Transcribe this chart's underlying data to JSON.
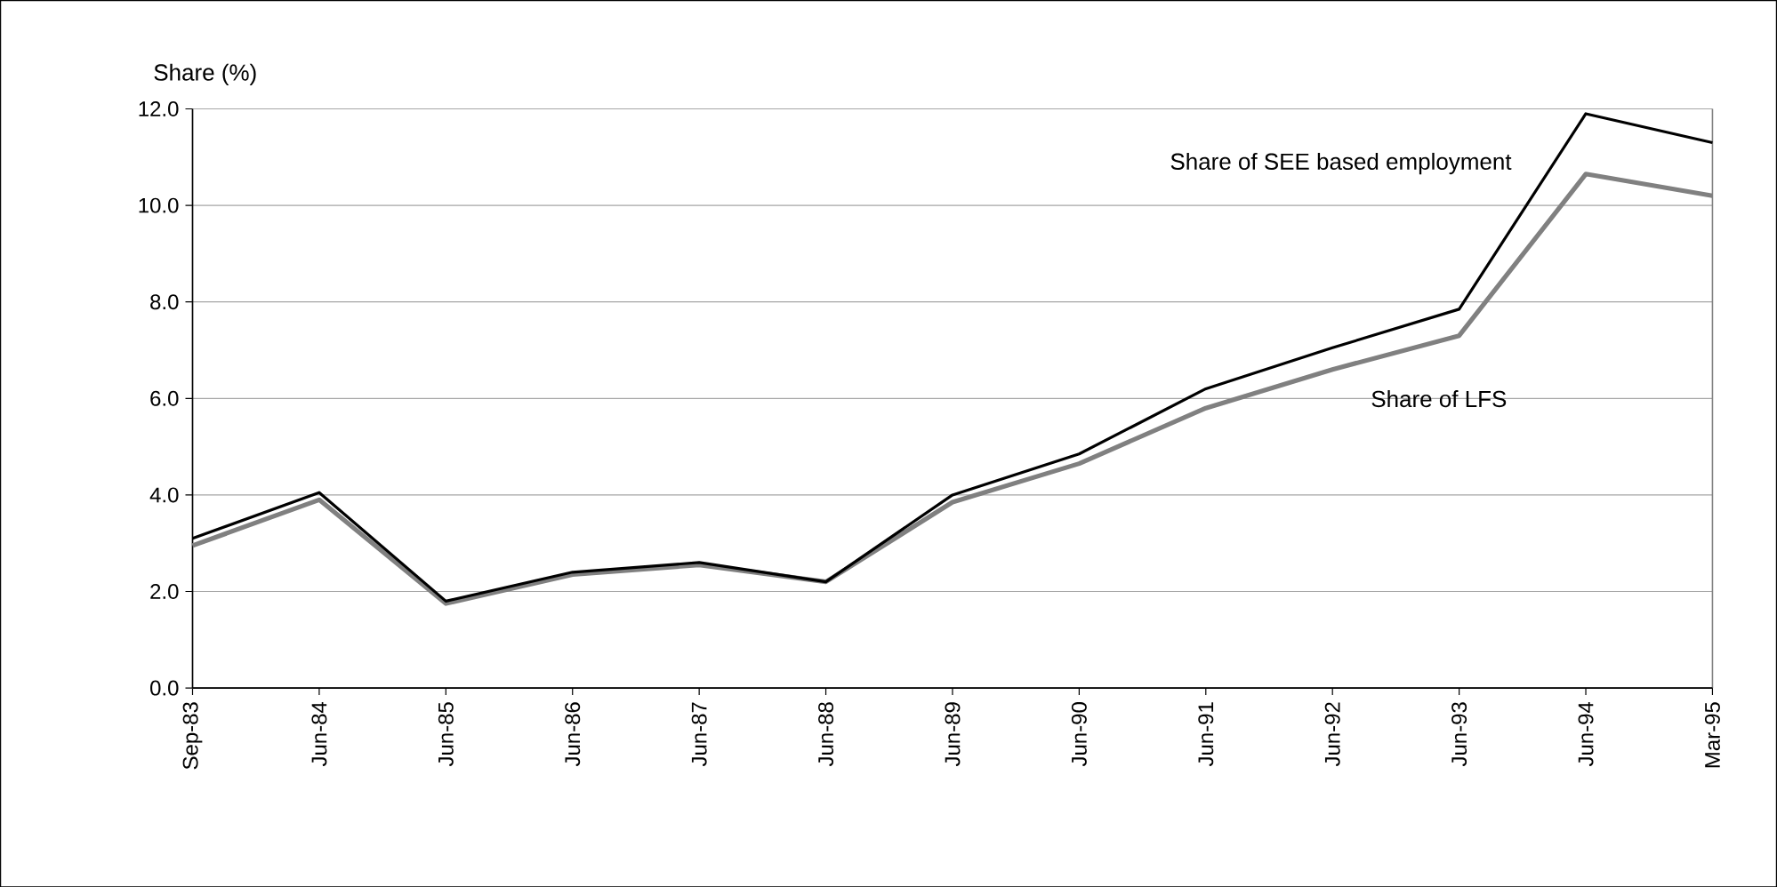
{
  "chart_data": {
    "type": "line",
    "ylabel": "Share (%)",
    "categories": [
      "Sep-83",
      "Jun-84",
      "Jun-85",
      "Jun-86",
      "Jun-87",
      "Jun-88",
      "Jun-89",
      "Jun-90",
      "Jun-91",
      "Jun-92",
      "Jun-93",
      "Jun-94",
      "Mar-95"
    ],
    "series": [
      {
        "name": "Share of SEE  based employment",
        "color": "#000000",
        "values": [
          3.1,
          4.05,
          1.8,
          2.4,
          2.6,
          2.2,
          4.0,
          4.85,
          6.2,
          7.05,
          7.85,
          11.9,
          11.3
        ]
      },
      {
        "name": "Share of LFS",
        "color": "#808080",
        "values": [
          2.95,
          3.9,
          1.75,
          2.35,
          2.55,
          2.2,
          3.85,
          4.65,
          5.8,
          6.6,
          7.3,
          10.65,
          10.2
        ]
      }
    ],
    "ylim": [
      0,
      12
    ],
    "yticks": [
      {
        "value": 0,
        "label": "0.0"
      },
      {
        "value": 2,
        "label": "2.0"
      },
      {
        "value": 4,
        "label": "4.0"
      },
      {
        "value": 6,
        "label": "6.0"
      },
      {
        "value": 8,
        "label": "8.0"
      },
      {
        "value": 10,
        "label": "10.0"
      },
      {
        "value": 12,
        "label": "12.0"
      }
    ],
    "grid": "y",
    "legend": false,
    "marker": "none",
    "line_style": "solid"
  }
}
